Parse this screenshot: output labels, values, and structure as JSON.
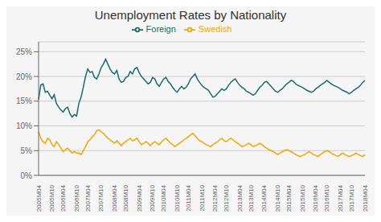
{
  "chart_data": {
    "type": "line",
    "title": "Unemployment Rates by Nationality",
    "categories": [
      "2005M04",
      null,
      null,
      null,
      null,
      null,
      "2005M10",
      null,
      null,
      null,
      null,
      "2006M04",
      null,
      null,
      null,
      null,
      null,
      "2006M10",
      null,
      null,
      null,
      null,
      "2007M04",
      null,
      null,
      null,
      null,
      null,
      "2007M10",
      null,
      null,
      null,
      null,
      null,
      "2008M04",
      null,
      null,
      null,
      null,
      "2008M10",
      null,
      null,
      null,
      null,
      null,
      "2009M04",
      null,
      null,
      null,
      null,
      null,
      "2009M10",
      null,
      null,
      null,
      null,
      "2010M04",
      null,
      null,
      null,
      null,
      null,
      "2010M10",
      null,
      null,
      null,
      null,
      "2011M04",
      null,
      null,
      null,
      null,
      null,
      "2011M10",
      null,
      null,
      null,
      null,
      null,
      "2012M04",
      null,
      null,
      null,
      null,
      "2012M10",
      null,
      null,
      null,
      null,
      null,
      "2013M04",
      null,
      null,
      null,
      null,
      "2013M10",
      null,
      null,
      null,
      null,
      null,
      "2014M04",
      null,
      null,
      null,
      null,
      null,
      "2014M10",
      null,
      null,
      null,
      null,
      "2015M04",
      null,
      null,
      null,
      null,
      null,
      "2015M10",
      null,
      null,
      null,
      null,
      null,
      "2016M04",
      null,
      null,
      null,
      null,
      "2016M10",
      null,
      null,
      null,
      null,
      null,
      "2017M04",
      null,
      null,
      null,
      null,
      "2017M10",
      null,
      null,
      null,
      null,
      null,
      "2018M04"
    ],
    "series": [
      {
        "name": "Foreign",
        "color": "#1a6b6b",
        "values": [
          0.153,
          0.183,
          0.185,
          0.168,
          0.17,
          0.162,
          0.155,
          0.163,
          0.145,
          0.138,
          0.132,
          0.128,
          0.135,
          0.138,
          0.125,
          0.118,
          0.123,
          0.12,
          0.145,
          0.158,
          0.178,
          0.2,
          0.215,
          0.208,
          0.21,
          0.198,
          0.195,
          0.205,
          0.218,
          0.225,
          0.235,
          0.225,
          0.215,
          0.208,
          0.205,
          0.212,
          0.195,
          0.188,
          0.19,
          0.198,
          0.2,
          0.21,
          0.205,
          0.215,
          0.218,
          0.208,
          0.2,
          0.195,
          0.19,
          0.185,
          0.188,
          0.198,
          0.195,
          0.185,
          0.18,
          0.188,
          0.195,
          0.198,
          0.19,
          0.185,
          0.178,
          0.172,
          0.168,
          0.175,
          0.18,
          0.175,
          0.178,
          0.185,
          0.195,
          0.2,
          0.205,
          0.195,
          0.188,
          0.182,
          0.178,
          0.175,
          0.172,
          0.165,
          0.158,
          0.16,
          0.165,
          0.17,
          0.175,
          0.172,
          0.175,
          0.182,
          0.188,
          0.192,
          0.195,
          0.188,
          0.182,
          0.178,
          0.175,
          0.17,
          0.168,
          0.165,
          0.162,
          0.165,
          0.172,
          0.178,
          0.182,
          0.188,
          0.19,
          0.185,
          0.18,
          0.175,
          0.17,
          0.168,
          0.172,
          0.175,
          0.18,
          0.185,
          0.188,
          0.192,
          0.19,
          0.185,
          0.182,
          0.18,
          0.178,
          0.175,
          0.172,
          0.17,
          0.168,
          0.17,
          0.175,
          0.178,
          0.182,
          0.185,
          0.188,
          0.192,
          0.188,
          0.185,
          0.182,
          0.18,
          0.178,
          0.175,
          0.172,
          0.17,
          0.168,
          0.165,
          0.168,
          0.172,
          0.175,
          0.178,
          0.182,
          0.188,
          0.192
        ]
      },
      {
        "name": "Swedish",
        "color": "#f0a500",
        "values": [
          0.088,
          0.075,
          0.068,
          0.065,
          0.075,
          0.072,
          0.062,
          0.058,
          0.068,
          0.062,
          0.055,
          0.048,
          0.052,
          0.055,
          0.05,
          0.045,
          0.048,
          0.045,
          0.045,
          0.042,
          0.05,
          0.058,
          0.068,
          0.072,
          0.078,
          0.082,
          0.09,
          0.092,
          0.088,
          0.085,
          0.08,
          0.075,
          0.072,
          0.068,
          0.065,
          0.07,
          0.065,
          0.06,
          0.065,
          0.068,
          0.072,
          0.075,
          0.07,
          0.072,
          0.075,
          0.068,
          0.062,
          0.065,
          0.068,
          0.065,
          0.06,
          0.065,
          0.068,
          0.065,
          0.062,
          0.068,
          0.072,
          0.075,
          0.07,
          0.065,
          0.062,
          0.058,
          0.062,
          0.065,
          0.068,
          0.072,
          0.075,
          0.078,
          0.082,
          0.085,
          0.08,
          0.075,
          0.07,
          0.068,
          0.065,
          0.062,
          0.06,
          0.058,
          0.062,
          0.065,
          0.068,
          0.072,
          0.075,
          0.07,
          0.068,
          0.072,
          0.075,
          0.072,
          0.068,
          0.065,
          0.062,
          0.058,
          0.06,
          0.062,
          0.065,
          0.062,
          0.058,
          0.06,
          0.062,
          0.065,
          0.062,
          0.058,
          0.055,
          0.052,
          0.05,
          0.048,
          0.045,
          0.042,
          0.045,
          0.048,
          0.05,
          0.052,
          0.05,
          0.048,
          0.045,
          0.042,
          0.04,
          0.038,
          0.04,
          0.042,
          0.045,
          0.048,
          0.045,
          0.042,
          0.04,
          0.038,
          0.042,
          0.045,
          0.048,
          0.05,
          0.048,
          0.045,
          0.042,
          0.04,
          0.038,
          0.042,
          0.045,
          0.042,
          0.04,
          0.038,
          0.04,
          0.042,
          0.045,
          0.042,
          0.04,
          0.038,
          0.042
        ]
      }
    ],
    "ylim": [
      0,
      0.27
    ],
    "yticks": [
      {
        "value": 0.0,
        "label": "0%"
      },
      {
        "value": 0.05,
        "label": "5%"
      },
      {
        "value": 0.1,
        "label": "10%"
      },
      {
        "value": 0.15,
        "label": "15%"
      },
      {
        "value": 0.2,
        "label": "20%"
      },
      {
        "value": 0.25,
        "label": "25%"
      }
    ],
    "grid": true,
    "legend": "top"
  }
}
